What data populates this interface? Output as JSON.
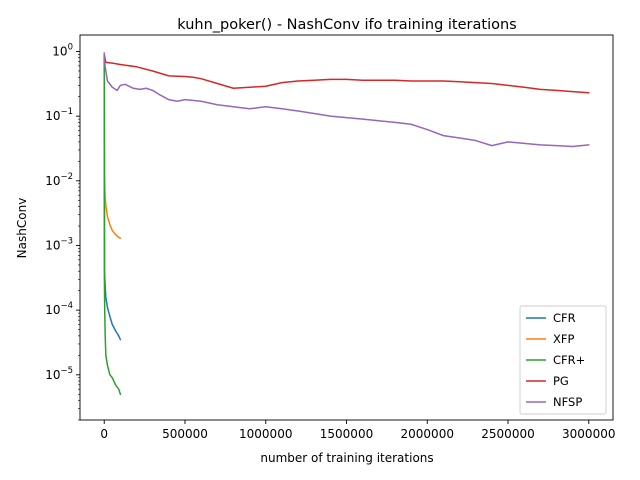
{
  "chart_data": {
    "type": "line",
    "title": "kuhn_poker() - NashConv ifo training iterations",
    "xlabel": "number of training iterations",
    "ylabel": "NashConv",
    "xlim": [
      -150000,
      3150000
    ],
    "ylim": [
      2e-06,
      1.8
    ],
    "yscale": "log",
    "grid": false,
    "legend_position": "lower-right",
    "x_ticks": [
      0,
      500000,
      1000000,
      1500000,
      2000000,
      2500000,
      3000000
    ],
    "x_tick_labels": [
      "0",
      "500000",
      "1000000",
      "1500000",
      "2000000",
      "2500000",
      "3000000"
    ],
    "y_ticks": [
      1e-05,
      0.0001,
      0.001,
      0.01,
      0.1,
      1
    ],
    "y_tick_labels": [
      {
        "base": "10",
        "exp": "−5"
      },
      {
        "base": "10",
        "exp": "−4"
      },
      {
        "base": "10",
        "exp": "−3"
      },
      {
        "base": "10",
        "exp": "−2"
      },
      {
        "base": "10",
        "exp": "−1"
      },
      {
        "base": "10",
        "exp": "0"
      }
    ],
    "series": [
      {
        "name": "CFR",
        "color": "#1f77b4",
        "x": [
          0,
          2000,
          5000,
          10000,
          20000,
          35000,
          50000,
          70000,
          90000,
          100000
        ],
        "y": [
          0.9,
          0.0004,
          0.00025,
          0.00016,
          0.00011,
          8e-05,
          6e-05,
          4.8e-05,
          4e-05,
          3.5e-05
        ]
      },
      {
        "name": "XFP",
        "color": "#ff7f0e",
        "x": [
          0,
          2000,
          5000,
          10000,
          20000,
          35000,
          50000,
          70000,
          90000,
          100000
        ],
        "y": [
          0.9,
          0.012,
          0.006,
          0.0042,
          0.0028,
          0.0021,
          0.0017,
          0.00148,
          0.00133,
          0.0013
        ]
      },
      {
        "name": "CFR+",
        "color": "#2ca02c",
        "x": [
          0,
          1000,
          3000,
          6000,
          10000,
          20000,
          35000,
          50000,
          70000,
          90000,
          100000
        ],
        "y": [
          0.9,
          0.0003,
          0.0001,
          4e-05,
          2e-05,
          1.4e-05,
          1e-05,
          9e-06,
          7e-06,
          6e-06,
          5e-06
        ]
      },
      {
        "name": "PG",
        "color": "#d62728",
        "x": [
          0,
          10000,
          50000,
          100000,
          200000,
          300000,
          400000,
          500000,
          550000,
          600000,
          700000,
          800000,
          900000,
          1000000,
          1100000,
          1200000,
          1300000,
          1400000,
          1500000,
          1600000,
          1700000,
          1800000,
          1900000,
          2000000,
          2100000,
          2200000,
          2300000,
          2400000,
          2500000,
          2600000,
          2700000,
          2800000,
          2900000,
          3000000
        ],
        "y": [
          0.9,
          0.68,
          0.66,
          0.63,
          0.58,
          0.5,
          0.42,
          0.41,
          0.4,
          0.38,
          0.32,
          0.27,
          0.28,
          0.29,
          0.33,
          0.35,
          0.36,
          0.37,
          0.37,
          0.36,
          0.36,
          0.36,
          0.35,
          0.35,
          0.35,
          0.34,
          0.33,
          0.32,
          0.3,
          0.28,
          0.26,
          0.25,
          0.24,
          0.23
        ]
      },
      {
        "name": "NFSP",
        "color": "#9467bd",
        "x": [
          0,
          5000,
          20000,
          50000,
          80000,
          100000,
          130000,
          180000,
          220000,
          260000,
          300000,
          350000,
          400000,
          450000,
          500000,
          600000,
          700000,
          800000,
          900000,
          1000000,
          1100000,
          1200000,
          1300000,
          1400000,
          1500000,
          1600000,
          1700000,
          1800000,
          1900000,
          2000000,
          2100000,
          2200000,
          2300000,
          2400000,
          2500000,
          2600000,
          2700000,
          2800000,
          2900000,
          3000000
        ],
        "y": [
          0.95,
          0.6,
          0.35,
          0.28,
          0.25,
          0.3,
          0.31,
          0.27,
          0.26,
          0.27,
          0.25,
          0.21,
          0.18,
          0.17,
          0.18,
          0.17,
          0.15,
          0.14,
          0.13,
          0.14,
          0.13,
          0.12,
          0.11,
          0.1,
          0.095,
          0.09,
          0.085,
          0.08,
          0.075,
          0.062,
          0.05,
          0.046,
          0.042,
          0.035,
          0.04,
          0.038,
          0.036,
          0.035,
          0.034,
          0.036
        ]
      }
    ]
  }
}
